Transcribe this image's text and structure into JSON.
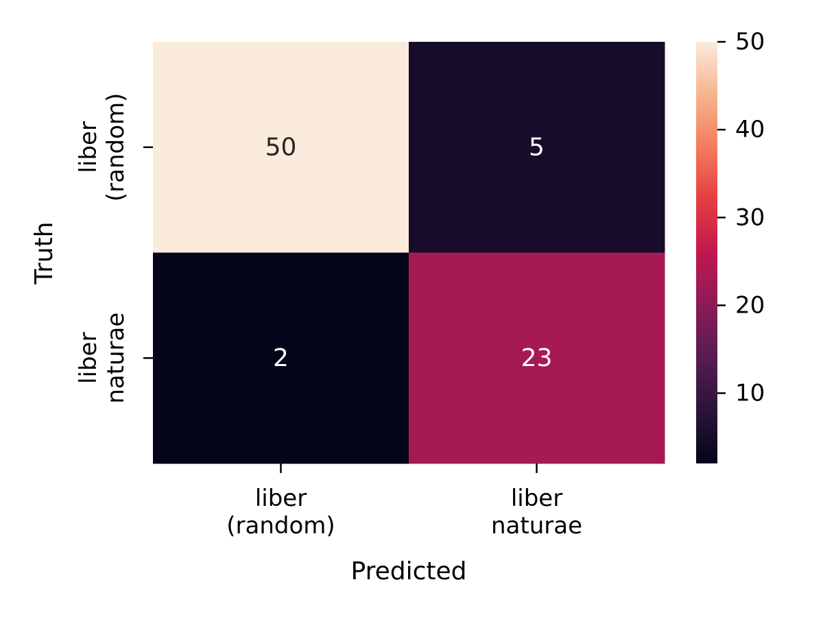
{
  "chart_data": {
    "type": "heatmap",
    "title": "",
    "xlabel": "Predicted",
    "ylabel": "Truth",
    "x_categories": [
      [
        "liber",
        "(random)"
      ],
      [
        "liber",
        "naturae"
      ]
    ],
    "y_categories": [
      [
        "liber",
        "(random)"
      ],
      [
        "liber",
        "naturae"
      ]
    ],
    "values": [
      [
        50,
        5
      ],
      [
        2,
        23
      ]
    ],
    "annotations": true,
    "colormap": "rocket",
    "colorbar": {
      "vmin": 2,
      "vmax": 50,
      "ticks": [
        10,
        20,
        30,
        40,
        50
      ],
      "position": "right"
    }
  }
}
